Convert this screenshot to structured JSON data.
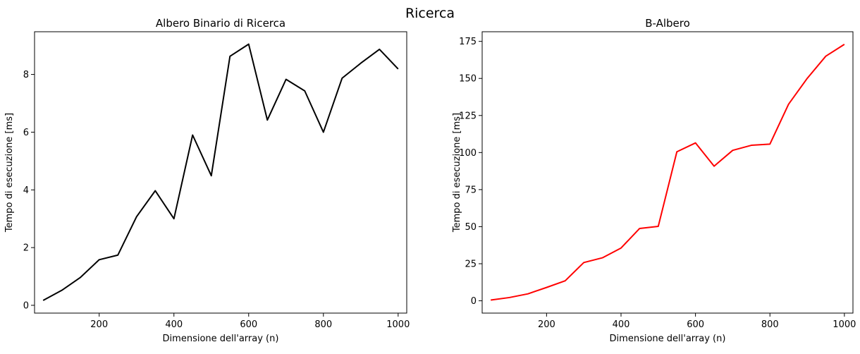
{
  "figure": {
    "title": "Ricerca"
  },
  "chart_data": [
    {
      "type": "line",
      "title": "Albero Binario di Ricerca",
      "xlabel": "Dimensione dell'array (n)",
      "ylabel": "Tempo di esecuzione [ms]",
      "xlim": [
        27,
        1023
      ],
      "ylim": [
        -0.27,
        9.48
      ],
      "xticks": [
        200,
        400,
        600,
        800,
        1000
      ],
      "yticks": [
        0,
        2,
        4,
        6,
        8
      ],
      "grid": false,
      "color": "#000000",
      "x": [
        50,
        100,
        150,
        200,
        250,
        300,
        350,
        400,
        450,
        500,
        550,
        600,
        650,
        700,
        750,
        800,
        850,
        900,
        950,
        1000
      ],
      "y": [
        0.17,
        0.52,
        0.97,
        1.58,
        1.74,
        3.07,
        3.97,
        3.0,
        5.9,
        4.49,
        8.63,
        9.05,
        6.42,
        7.83,
        7.43,
        6.0,
        7.87,
        8.39,
        8.87,
        8.19
      ]
    },
    {
      "type": "line",
      "title": "B-Albero",
      "xlabel": "Dimensione dell'array (n)",
      "ylabel": "Tempo di esecuzione [ms]",
      "xlim": [
        27,
        1023
      ],
      "ylim": [
        -8.3,
        181.5
      ],
      "xticks": [
        200,
        400,
        600,
        800,
        1000
      ],
      "yticks": [
        0,
        25,
        50,
        75,
        100,
        125,
        150,
        175
      ],
      "grid": false,
      "color": "#ff0000",
      "x": [
        50,
        100,
        150,
        200,
        250,
        300,
        350,
        400,
        450,
        500,
        550,
        600,
        650,
        700,
        750,
        800,
        850,
        900,
        950,
        1000
      ],
      "y": [
        0.5,
        2.2,
        4.7,
        9.0,
        13.5,
        25.8,
        29.0,
        35.6,
        48.8,
        50.2,
        100.5,
        106.5,
        90.8,
        101.5,
        104.9,
        105.7,
        132.6,
        150.0,
        165.0,
        173.0
      ]
    }
  ]
}
